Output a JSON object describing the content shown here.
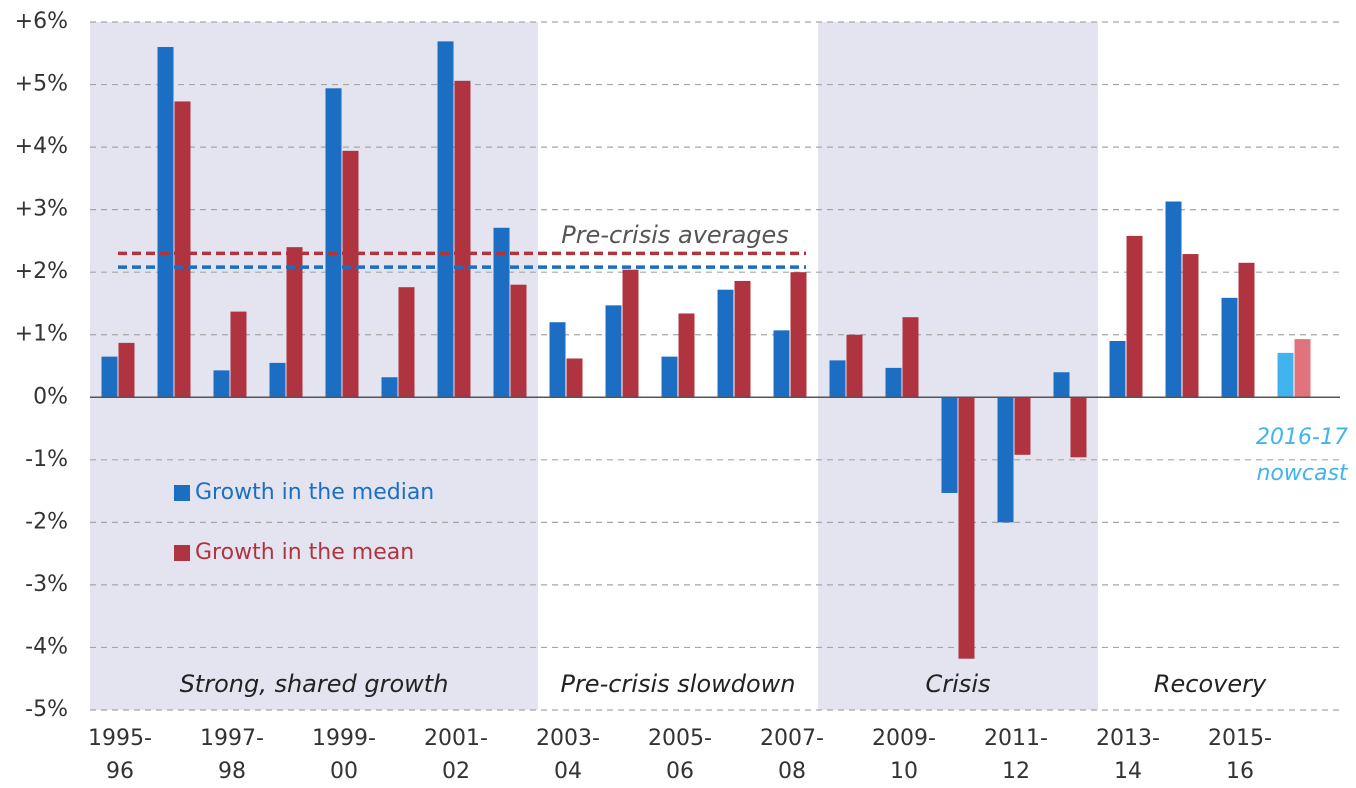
{
  "chart_data": {
    "type": "bar",
    "categories": [
      "1995-\n96",
      null,
      "1997-\n98",
      null,
      "1999-\n00",
      null,
      "2001-\n02",
      null,
      "2003-\n04",
      null,
      "2005-\n06",
      null,
      "2007-\n08",
      null,
      "2009-\n10",
      null,
      "2011-\n12",
      null,
      "2013-\n14",
      null,
      "2015-\n16",
      null
    ],
    "series": [
      {
        "name": "Growth in the median",
        "color": "#1b6ec2",
        "colors": [
          "#1b6ec2",
          "#1b6ec2",
          "#1b6ec2",
          "#1b6ec2",
          "#1b6ec2",
          "#1b6ec2",
          "#1b6ec2",
          "#1b6ec2",
          "#1b6ec2",
          "#1b6ec2",
          "#1b6ec2",
          "#1b6ec2",
          "#1b6ec2",
          "#1b6ec2",
          "#1b6ec2",
          "#1b6ec2",
          "#1b6ec2",
          "#1b6ec2",
          "#1b6ec2",
          "#1b6ec2",
          "#1b6ec2",
          "#41b4f0"
        ],
        "values": [
          0.65,
          5.6,
          0.43,
          0.55,
          4.94,
          0.32,
          5.69,
          2.71,
          1.2,
          1.47,
          0.65,
          1.72,
          1.07,
          0.59,
          0.47,
          -1.53,
          -2.0,
          0.4,
          0.9,
          3.13,
          1.59,
          0.71
        ]
      },
      {
        "name": "Growth in the mean",
        "color": "#b0343f",
        "colors": [
          "#b0343f",
          "#b0343f",
          "#b0343f",
          "#b0343f",
          "#b0343f",
          "#b0343f",
          "#b0343f",
          "#b0343f",
          "#b0343f",
          "#b0343f",
          "#b0343f",
          "#b0343f",
          "#b0343f",
          "#b0343f",
          "#b0343f",
          "#b0343f",
          "#b0343f",
          "#b0343f",
          "#b0343f",
          "#b0343f",
          "#b0343f",
          "#e0737c"
        ],
        "values": [
          0.87,
          4.73,
          1.37,
          2.4,
          3.94,
          1.76,
          5.06,
          1.8,
          0.62,
          2.04,
          1.34,
          1.86,
          2.0,
          1.0,
          1.28,
          -4.18,
          -0.92,
          -0.96,
          2.58,
          2.29,
          2.15,
          0.93
        ]
      }
    ],
    "ylim": [
      -5,
      6
    ],
    "yticks": [
      {
        "value": -5,
        "label": "-5%"
      },
      {
        "value": -4,
        "label": "-4%"
      },
      {
        "value": -3,
        "label": "-3%"
      },
      {
        "value": -2,
        "label": "-2%"
      },
      {
        "value": -1,
        "label": "-1%"
      },
      {
        "value": 0,
        "label": "0%"
      },
      {
        "value": 1,
        "label": "+1%"
      },
      {
        "value": 2,
        "label": "+2%"
      },
      {
        "value": 3,
        "label": "+3%"
      },
      {
        "value": 4,
        "label": "+4%"
      },
      {
        "value": 5,
        "label": "+5%"
      },
      {
        "value": 6,
        "label": "+6%"
      }
    ],
    "grid": true,
    "legend": "middle left",
    "periods": [
      {
        "label": "Strong, shared growth",
        "start_index": 0,
        "end_index": 7,
        "shade": "#e4e4f0"
      },
      {
        "label": "Pre-crisis slowdown",
        "start_index": 8,
        "end_index": 12,
        "shade": null
      },
      {
        "label": "Crisis",
        "start_index": 13,
        "end_index": 17,
        "shade": "#e4e4f0"
      },
      {
        "label": "Recovery",
        "start_index": 18,
        "end_index": 21,
        "shade": null
      }
    ],
    "reference_label": "Pre-crisis averages",
    "reference_lines": [
      {
        "value": 2.3,
        "color": "#b0343f",
        "start_index": 0,
        "end_index": 12
      },
      {
        "value": 2.08,
        "color": "#1b6ec2",
        "start_index": 0,
        "end_index": 12
      }
    ],
    "annotation": {
      "text": "2016-17\nnowcast",
      "index": 21,
      "color": "#41b4f0"
    }
  }
}
